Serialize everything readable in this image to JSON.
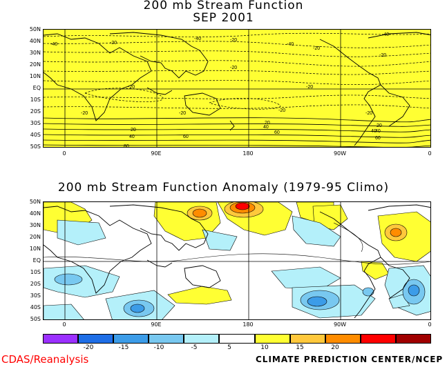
{
  "titles": {
    "top_line1": "200 mb Stream Function",
    "top_line2": "SEP 2001",
    "bottom": "200 mb Stream Function Anomaly (1979-95 Climo)"
  },
  "lat_labels": [
    "50N",
    "40N",
    "30N",
    "20N",
    "10N",
    "EQ",
    "10S",
    "20S",
    "30S",
    "40S",
    "50S"
  ],
  "lon_labels": [
    "0",
    "90E",
    "180",
    "90W",
    "0"
  ],
  "top_contour_labels": [
    "-40",
    "-20",
    "-40",
    "-20",
    "-40",
    "-20",
    "-40",
    "-20",
    "-20",
    "-20",
    "-20",
    "-20",
    "-20",
    "-20",
    "-20",
    "20",
    "40",
    "60",
    "20",
    "40",
    "60",
    "80",
    "40",
    "20",
    "40",
    "60"
  ],
  "colorbar": {
    "labels": [
      "-20",
      "-15",
      "-10",
      "-5",
      "5",
      "10",
      "15",
      "20"
    ],
    "colors": [
      "#9b30ff",
      "#1e6ee6",
      "#3c9ce8",
      "#78c8f0",
      "#b4f0fa",
      "#ffffff",
      "#ffff33",
      "#ffc83c",
      "#ff8c00",
      "#ff0000",
      "#a00000"
    ]
  },
  "map_colors": {
    "land_fill_top": "#ffff33",
    "anomaly_positive": "#ffff33",
    "anomaly_negative": "#b4f0fa"
  },
  "footer": {
    "left": "CDAS/Reanalysis",
    "right": "CLIMATE PREDICTION CENTER/NCEP"
  }
}
